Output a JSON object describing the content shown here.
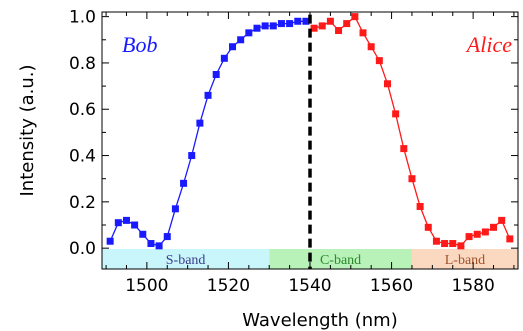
{
  "chart_data": {
    "type": "line",
    "xlabel": "Wavelength (nm)",
    "ylabel": "Intensity (a.u.)",
    "xlim": [
      1489,
      1591
    ],
    "ylim": [
      -0.09,
      1.02
    ],
    "x_ticks": [
      1500,
      1520,
      1540,
      1560,
      1580
    ],
    "y_ticks": [
      0.0,
      0.2,
      0.4,
      0.6,
      0.8,
      1.0
    ],
    "grid": false,
    "markers": "square",
    "series": [
      {
        "name": "Bob",
        "color": "#1a1aff",
        "x": [
          1491,
          1493,
          1495,
          1497,
          1499,
          1501,
          1503,
          1505,
          1507,
          1509,
          1511,
          1513,
          1515,
          1517,
          1519,
          1521,
          1523,
          1525,
          1527,
          1529,
          1531,
          1533,
          1535,
          1537,
          1539
        ],
        "values": [
          0.03,
          0.11,
          0.12,
          0.1,
          0.06,
          0.02,
          0.01,
          0.05,
          0.17,
          0.28,
          0.4,
          0.54,
          0.66,
          0.75,
          0.82,
          0.87,
          0.9,
          0.93,
          0.95,
          0.96,
          0.96,
          0.97,
          0.97,
          0.98,
          0.98
        ]
      },
      {
        "name": "Alice",
        "color": "#ff1a1a",
        "x": [
          1541,
          1543,
          1545,
          1547,
          1549,
          1551,
          1553,
          1555,
          1557,
          1559,
          1561,
          1563,
          1565,
          1567,
          1569,
          1571,
          1573,
          1575,
          1577,
          1579,
          1581,
          1583,
          1585,
          1587,
          1589
        ],
        "values": [
          0.95,
          0.96,
          0.98,
          0.94,
          0.97,
          1.0,
          0.93,
          0.87,
          0.81,
          0.71,
          0.58,
          0.43,
          0.3,
          0.18,
          0.09,
          0.03,
          0.02,
          0.02,
          0.01,
          0.05,
          0.06,
          0.07,
          0.09,
          0.12,
          0.04
        ]
      }
    ],
    "annotations": [
      {
        "text": "Bob",
        "color": "#1a1aff"
      },
      {
        "text": "Alice",
        "color": "#ff1a1a"
      }
    ],
    "divider": {
      "x": 1540
    },
    "bands": [
      {
        "label": "S-band",
        "x0": 1489,
        "x1": 1530,
        "color": "#c8f6fb",
        "text_color": "#3c3c8c"
      },
      {
        "label": "C-band",
        "x0": 1530,
        "x1": 1565,
        "color": "#b8f2b8",
        "text_color": "#2e8a2e"
      },
      {
        "label": "L-band",
        "x0": 1565,
        "x1": 1591,
        "color": "#fbd9c0",
        "text_color": "#a0522d"
      }
    ]
  }
}
